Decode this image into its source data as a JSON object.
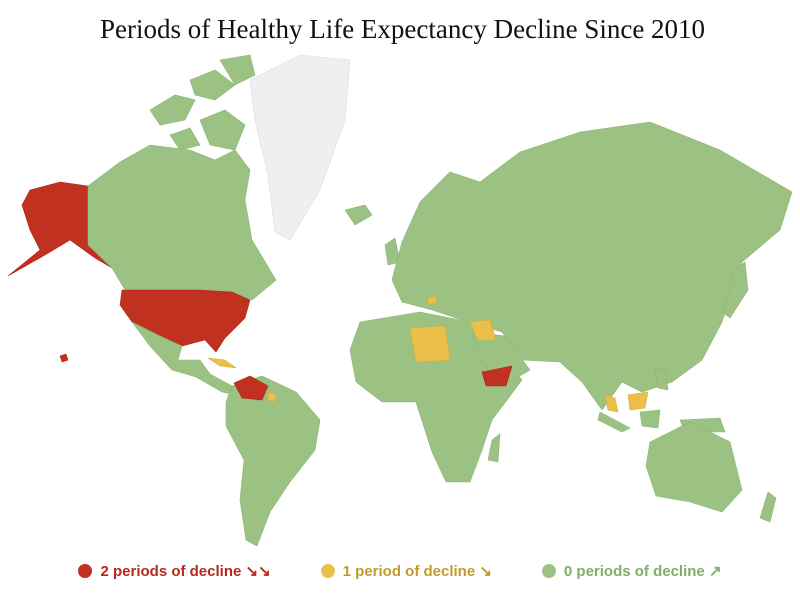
{
  "title": "Periods of Healthy Life Expectancy Decline Since 2010",
  "legend": [
    {
      "label": "2 periods of decline ↘↘",
      "color": "#c0311f",
      "text_color": "#b52a1c"
    },
    {
      "label": "1 period of decline ↘",
      "color": "#ebc04a",
      "text_color": "#c39a2a"
    },
    {
      "label": "0 periods of decline ↗",
      "color": "#9bc283",
      "text_color": "#7fae68"
    }
  ],
  "no_data_color": "#efefef",
  "regions_2_periods": [
    "United States",
    "Venezuela",
    "Yemen"
  ],
  "regions_1_period": [
    "Libya",
    "Iraq",
    "Cuba",
    "Malaysia"
  ]
}
